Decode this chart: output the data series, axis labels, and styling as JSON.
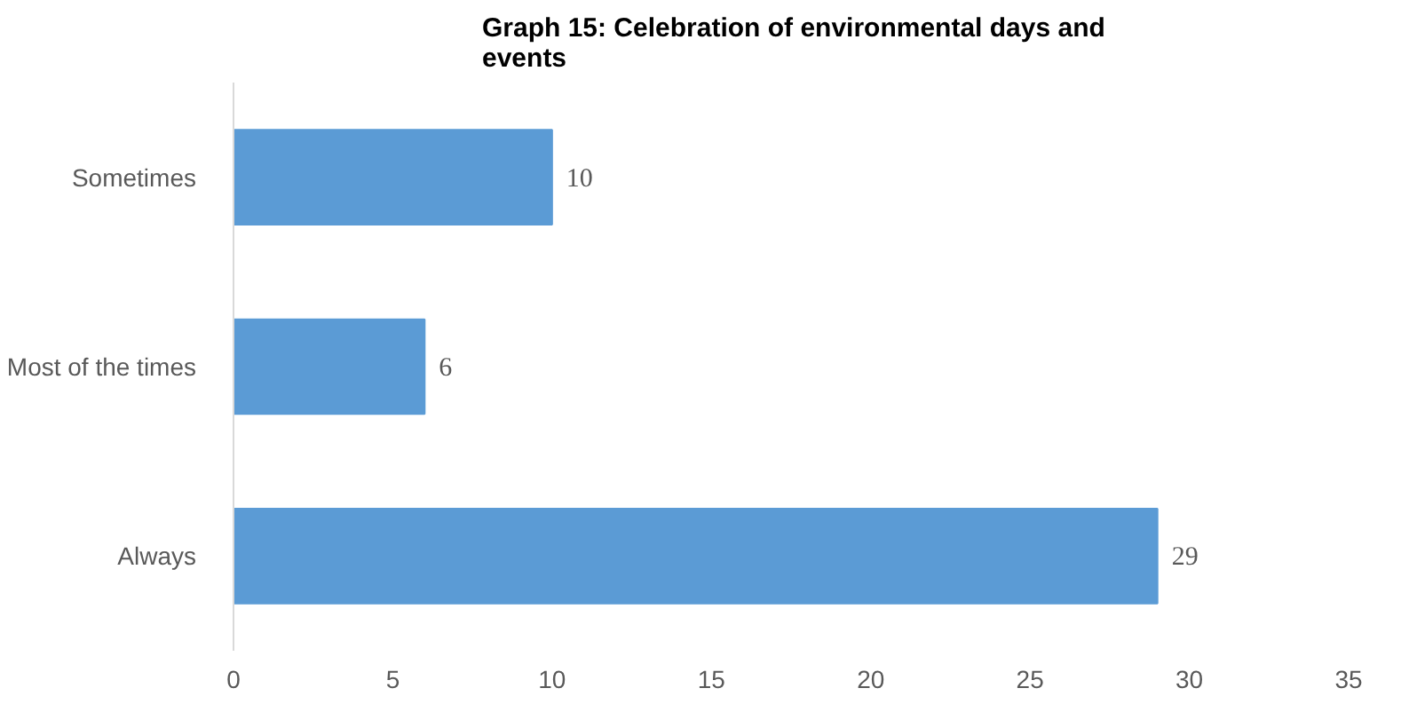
{
  "chart_data": {
    "type": "bar",
    "orientation": "horizontal",
    "title": "Graph 15: Celebration of environmental days and events",
    "categories": [
      "Sometimes",
      "Most of the times",
      "Always"
    ],
    "values": [
      10,
      6,
      29
    ],
    "color": "#5b9bd5",
    "xlim": [
      0,
      35
    ],
    "xticks": [
      0,
      5,
      10,
      15,
      20,
      25,
      30,
      35
    ],
    "grid": false,
    "data_labels": true
  }
}
